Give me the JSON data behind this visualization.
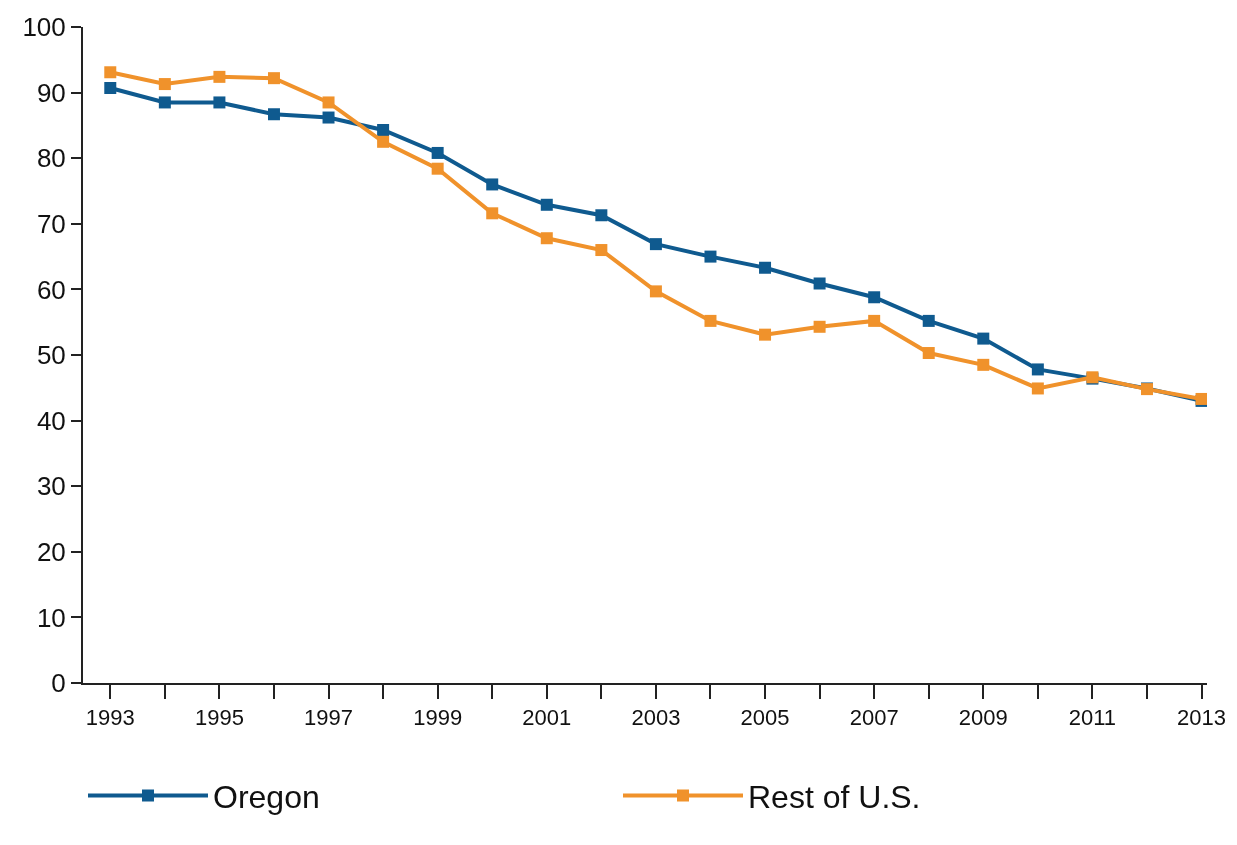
{
  "chart_data": {
    "type": "line",
    "x": [
      1993,
      1994,
      1995,
      1996,
      1997,
      1998,
      1999,
      2000,
      2001,
      2002,
      2003,
      2004,
      2005,
      2006,
      2007,
      2008,
      2009,
      2010,
      2011,
      2012,
      2013
    ],
    "series": [
      {
        "name": "Oregon",
        "color": "#0f5a8f",
        "values": [
          90.7,
          88.5,
          88.5,
          86.7,
          86.2,
          84.3,
          80.8,
          76.0,
          72.9,
          71.3,
          66.9,
          65.0,
          63.3,
          60.9,
          58.8,
          55.2,
          52.5,
          47.8,
          46.4,
          44.9,
          43.0
        ]
      },
      {
        "name": "Rest of U.S.",
        "color": "#f0922b",
        "values": [
          93.1,
          91.3,
          92.4,
          92.2,
          88.5,
          82.5,
          78.4,
          71.6,
          67.8,
          66.0,
          59.7,
          55.2,
          53.1,
          54.3,
          55.2,
          50.3,
          48.5,
          44.9,
          46.6,
          44.8,
          43.3
        ]
      }
    ],
    "xlim": [
      1992.5,
      2013.1
    ],
    "xticks": [
      1993,
      {
        "value": 1994,
        "label": null
      },
      1995,
      {
        "value": 1996,
        "label": null
      },
      1997,
      {
        "value": 1998,
        "label": null
      },
      1999,
      {
        "value": 2000,
        "label": null
      },
      2001,
      {
        "value": 2002,
        "label": null
      },
      2003,
      {
        "value": 2004,
        "label": null
      },
      2005,
      {
        "value": 2006,
        "label": null
      },
      2007,
      {
        "value": 2008,
        "label": null
      },
      2009,
      {
        "value": 2010,
        "label": null
      },
      2011,
      {
        "value": 2012,
        "label": null
      },
      2013
    ],
    "ylim": [
      0,
      100
    ],
    "yticks": [
      0,
      10,
      20,
      30,
      40,
      50,
      60,
      70,
      80,
      90,
      100
    ],
    "grid": false,
    "legend": "bottom",
    "marker": "square",
    "line_style": "solid"
  }
}
